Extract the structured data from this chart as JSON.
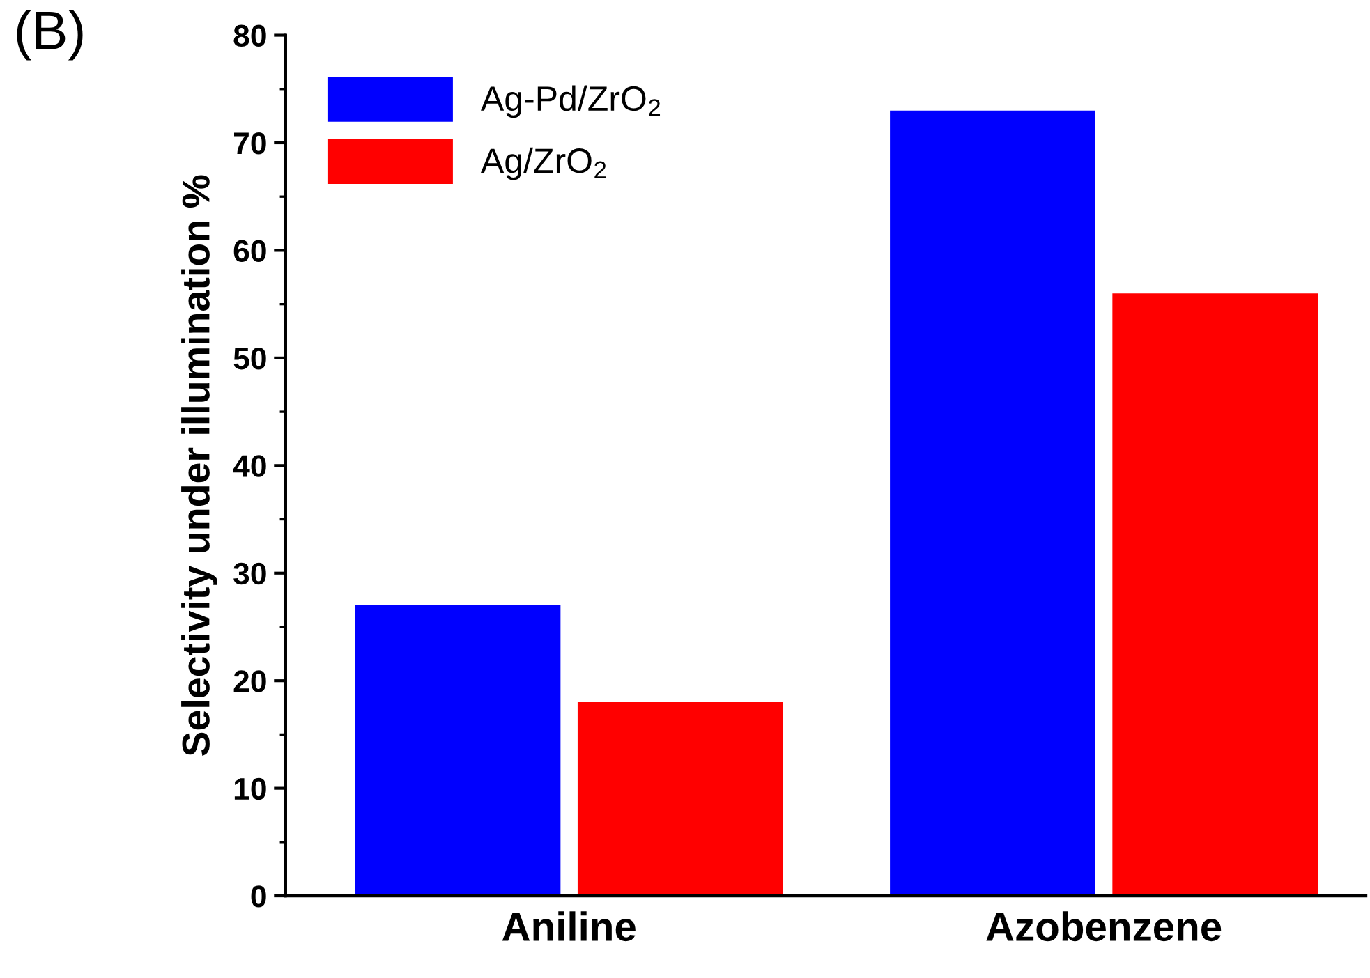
{
  "chart_data": {
    "type": "bar",
    "categories": [
      "Aniline",
      "Azobenzene"
    ],
    "series": [
      {
        "name": "Ag-Pd/ZrO$_{2}$",
        "color": "#0000ff",
        "values": [
          27,
          73
        ]
      },
      {
        "name": "Ag/ZrO$_{2}$",
        "color": "#ff0000",
        "values": [
          18,
          56
        ]
      }
    ],
    "ylabel": "Selectivity under illumination %",
    "ylim": [
      0,
      80
    ],
    "yticks": [
      0,
      10,
      20,
      30,
      40,
      50,
      60,
      70,
      80
    ],
    "annotations": [
      "(B)"
    ],
    "legend": "top left",
    "grid": false
  }
}
